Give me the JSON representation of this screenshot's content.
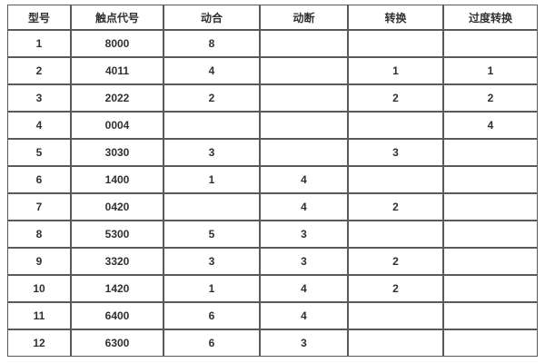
{
  "table": {
    "columns": [
      {
        "key": "model",
        "label": "型号"
      },
      {
        "key": "contact-code",
        "label": "触点代号"
      },
      {
        "key": "normally-open",
        "label": "动合"
      },
      {
        "key": "normally-closed",
        "label": "动断"
      },
      {
        "key": "changeover",
        "label": "转换"
      },
      {
        "key": "transition-changeover",
        "label": "过度转换"
      }
    ],
    "rows": [
      [
        "1",
        "8000",
        "8",
        "",
        "",
        ""
      ],
      [
        "2",
        "4011",
        "4",
        "",
        "1",
        "1"
      ],
      [
        "3",
        "2022",
        "2",
        "",
        "2",
        "2"
      ],
      [
        "4",
        "0004",
        "",
        "",
        "",
        "4"
      ],
      [
        "5",
        "3030",
        "3",
        "",
        "3",
        ""
      ],
      [
        "6",
        "1400",
        "1",
        "4",
        "",
        ""
      ],
      [
        "7",
        "0420",
        "",
        "4",
        "2",
        ""
      ],
      [
        "8",
        "5300",
        "5",
        "3",
        "",
        ""
      ],
      [
        "9",
        "3320",
        "3",
        "3",
        "2",
        ""
      ],
      [
        "10",
        "1420",
        "1",
        "4",
        "2",
        ""
      ],
      [
        "11",
        "6400",
        "6",
        "4",
        "",
        ""
      ],
      [
        "12",
        "6300",
        "6",
        "3",
        "",
        ""
      ]
    ]
  },
  "colors": {
    "border": "#595959",
    "text": "#303030",
    "background": "#ffffff"
  }
}
